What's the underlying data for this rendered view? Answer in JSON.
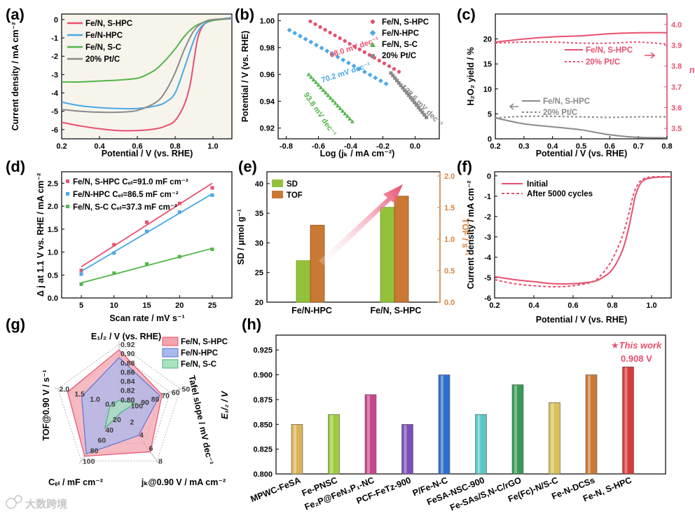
{
  "colors": {
    "red": "#e8506e",
    "blue": "#4aa8e8",
    "green": "#52b64a",
    "gray": "#8a8a8a",
    "orange": "#d9843f",
    "bar_green": "#93c23a",
    "bar_orange": "#c97934"
  },
  "panel_labels": [
    "(a)",
    "(b)",
    "(c)",
    "(d)",
    "(e)",
    "(f)",
    "(g)",
    "(h)"
  ],
  "watermark": "大数跨境",
  "chart_data": [
    {
      "panel": "(a)",
      "type": "line",
      "xlabel": "Potential / V (vs. RHE)",
      "ylabel": "Current density / mA cm⁻²",
      "xlim": [
        0.2,
        1.1
      ],
      "ylim": [
        -6.5,
        0.3
      ],
      "xticks": [
        "0.2",
        "0.4",
        "0.6",
        "0.8",
        "1.0"
      ],
      "yticks": [
        "0",
        "-1",
        "-2",
        "-3",
        "-4",
        "-5",
        "-6"
      ],
      "legend": [
        "Fe/N, S-HPC",
        "Fe/N-HPC",
        "Fe/N, S-C",
        "20% Pt/C"
      ],
      "series": [
        {
          "name": "Fe/N, S-HPC",
          "color_key": "red",
          "x": [
            0.2,
            0.3,
            0.4,
            0.5,
            0.6,
            0.7,
            0.75,
            0.8,
            0.85,
            0.88,
            0.9,
            0.92,
            0.95,
            1.0,
            1.1
          ],
          "y": [
            -5.6,
            -5.8,
            -5.95,
            -6.05,
            -6.05,
            -5.95,
            -5.8,
            -5.5,
            -4.6,
            -3.5,
            -2.2,
            -1.0,
            -0.3,
            -0.05,
            0.1
          ]
        },
        {
          "name": "Fe/N-HPC",
          "color_key": "blue",
          "x": [
            0.2,
            0.3,
            0.4,
            0.5,
            0.6,
            0.7,
            0.75,
            0.8,
            0.85,
            0.9,
            0.93,
            0.96,
            1.0,
            1.1
          ],
          "y": [
            -4.5,
            -4.7,
            -4.8,
            -4.85,
            -4.85,
            -4.7,
            -4.5,
            -4.0,
            -2.6,
            -1.1,
            -0.5,
            -0.2,
            -0.05,
            0.1
          ]
        },
        {
          "name": "Fe/N, S-C",
          "color_key": "green",
          "x": [
            0.2,
            0.3,
            0.4,
            0.5,
            0.6,
            0.65,
            0.7,
            0.75,
            0.8,
            0.85,
            0.9,
            0.95,
            1.0,
            1.1
          ],
          "y": [
            -3.4,
            -3.4,
            -3.35,
            -3.3,
            -3.2,
            -3.0,
            -2.7,
            -2.2,
            -1.6,
            -0.9,
            -0.4,
            -0.15,
            -0.05,
            0.05
          ]
        },
        {
          "name": "20% Pt/C",
          "color_key": "gray",
          "x": [
            0.2,
            0.3,
            0.4,
            0.5,
            0.6,
            0.7,
            0.75,
            0.8,
            0.85,
            0.9,
            0.95,
            1.0,
            1.1
          ],
          "y": [
            -4.9,
            -5.0,
            -5.05,
            -5.05,
            -4.95,
            -4.5,
            -3.9,
            -2.9,
            -1.6,
            -0.6,
            -0.15,
            0.0,
            0.05
          ]
        }
      ]
    },
    {
      "panel": "(b)",
      "type": "scatter",
      "xlabel": "Log (jₖ / mA cm⁻²)",
      "ylabel": "Potential / V (vs. RHE)",
      "xlim": [
        -0.85,
        0.15
      ],
      "ylim": [
        0.912,
        1.005
      ],
      "xticks": [
        "-0.8",
        "-0.6",
        "-0.4",
        "-0.2",
        "0.0"
      ],
      "yticks": [
        "1.00",
        "0.98",
        "0.96",
        "0.94",
        "0.92"
      ],
      "legend": [
        "Fe/N, S-HPC",
        "Fe/N-HPC",
        "Fe/N, S-C",
        "20% Pt/C"
      ],
      "annotations": [
        "68.0 mV dec⁻¹",
        "70.2 mV dec⁻¹",
        "93.8 mV dec⁻¹",
        "128.6 mV dec⁻¹"
      ],
      "series": [
        {
          "name": "Fe/N, S-HPC",
          "color_key": "red",
          "x0": -0.65,
          "x1": -0.1,
          "y0": 0.9995,
          "y1": 0.962
        },
        {
          "name": "Fe/N-HPC",
          "color_key": "blue",
          "x0": -0.78,
          "x1": -0.18,
          "y0": 0.993,
          "y1": 0.953
        },
        {
          "name": "Fe/N, S-C",
          "color_key": "green",
          "x0": -0.66,
          "x1": -0.39,
          "y0": 0.96,
          "y1": 0.925
        },
        {
          "name": "20% Pt/C",
          "color_key": "gray",
          "x0": -0.15,
          "x1": 0.07,
          "y0": 0.961,
          "y1": 0.928
        }
      ]
    },
    {
      "panel": "(c)",
      "type": "line",
      "xlabel": "Potential / V (vs. RHE)",
      "ylabel": "H₂O₂ yield / %",
      "y2label": "n",
      "xlim": [
        0.2,
        0.8
      ],
      "ylim": [
        0,
        25
      ],
      "y2lim": [
        3.45,
        4.05
      ],
      "xticks": [
        "0.2",
        "0.3",
        "0.4",
        "0.5",
        "0.6",
        "0.7",
        "0.8"
      ],
      "yticks": [
        "0",
        "5",
        "10",
        "15",
        "20"
      ],
      "y2ticks": [
        "3.5",
        "3.6",
        "3.7",
        "3.8",
        "3.9",
        "4.0"
      ],
      "legend": [
        "Fe/N, S-HPC",
        "20% Pt/C",
        "Fe/N, S-HPC",
        "20% Pt/C"
      ],
      "series": [
        {
          "name": "Fe/N, S-HPC n",
          "axis": "right",
          "style": "solid",
          "color_key": "red",
          "x": [
            0.2,
            0.3,
            0.4,
            0.5,
            0.6,
            0.7,
            0.8
          ],
          "y": [
            3.915,
            3.93,
            3.94,
            3.945,
            3.955,
            3.96,
            3.96
          ]
        },
        {
          "name": "20% Pt/C n",
          "axis": "right",
          "style": "dashed",
          "color_key": "red",
          "x": [
            0.2,
            0.3,
            0.4,
            0.5,
            0.6,
            0.7,
            0.8
          ],
          "y": [
            3.91,
            3.915,
            3.915,
            3.91,
            3.91,
            3.915,
            3.905
          ]
        },
        {
          "name": "Fe/N, S-HPC H2O2",
          "axis": "left",
          "style": "solid",
          "color_key": "gray",
          "x": [
            0.2,
            0.3,
            0.4,
            0.5,
            0.6,
            0.7,
            0.8
          ],
          "y": [
            4.2,
            3.0,
            2.4,
            1.8,
            0.8,
            0.3,
            0.2
          ]
        },
        {
          "name": "20% Pt/C H2O2",
          "axis": "left",
          "style": "dashed",
          "color_key": "gray",
          "x": [
            0.2,
            0.3,
            0.4,
            0.5,
            0.6,
            0.7,
            0.8
          ],
          "y": [
            4.2,
            4.5,
            4.5,
            4.4,
            4.3,
            4.4,
            4.4
          ]
        }
      ]
    },
    {
      "panel": "(d)",
      "type": "scatter",
      "xlabel": "Scan rate / mV s⁻¹",
      "ylabel": "Δ j at 1.1 V vs. RHE / mA cm⁻²",
      "xlim": [
        2,
        28
      ],
      "ylim": [
        0,
        2.75
      ],
      "xticks": [
        "5",
        "10",
        "15",
        "20",
        "25"
      ],
      "yticks": [
        "0.0",
        "0.5",
        "1.0",
        "1.5",
        "2.0",
        "2.5"
      ],
      "legend": [
        "Fe/N, S-HPC  Cₑₗ=91.0 mF cm⁻²",
        "Fe/N-HPC  Cₑₗ=86.5 mF cm⁻²",
        "Fe/N, S-C  Cₑₗ=37.3 mF cm⁻²"
      ],
      "x": [
        5,
        10,
        15,
        20,
        25
      ],
      "series": [
        {
          "name": "Fe/N, S-HPC",
          "color_key": "red",
          "values": [
            0.6,
            1.16,
            1.65,
            2.06,
            2.4
          ],
          "fit": [
            0.68,
            2.5
          ]
        },
        {
          "name": "Fe/N-HPC",
          "color_key": "blue",
          "values": [
            0.52,
            0.98,
            1.45,
            1.87,
            2.24
          ],
          "fit": [
            0.58,
            2.27
          ]
        },
        {
          "name": "Fe/N, S-C",
          "color_key": "green",
          "values": [
            0.3,
            0.54,
            0.74,
            0.9,
            1.06
          ],
          "fit": [
            0.33,
            1.08
          ]
        }
      ]
    },
    {
      "panel": "(e)",
      "type": "bar",
      "categories": [
        "Fe/N-HPC",
        "Fe/N, S-HPC"
      ],
      "ylabel": "SD / μmol g⁻¹",
      "y2label": "TOF / s⁻¹",
      "ylim": [
        20,
        42
      ],
      "y2lim": [
        0.0,
        2.0
      ],
      "yticks": [
        "20",
        "25",
        "30",
        "35",
        "40"
      ],
      "y2ticks": [
        "0.0",
        "0.5",
        "1.0",
        "1.5",
        "2.0"
      ],
      "legend": [
        "SD",
        "TOF"
      ],
      "series": [
        {
          "name": "SD",
          "color_key": "bar_green",
          "values": [
            27.0,
            36.0
          ]
        },
        {
          "name": "TOF",
          "color_key": "bar_orange",
          "values": [
            1.22,
            1.68
          ]
        }
      ]
    },
    {
      "panel": "(f)",
      "type": "line",
      "xlabel": "Potential / V (vs. RHE)",
      "ylabel": "Current density / mA cm⁻²",
      "xlim": [
        0.2,
        1.1
      ],
      "ylim": [
        -6.0,
        0.2
      ],
      "xticks": [
        "0.2",
        "0.4",
        "0.6",
        "0.8",
        "1.0"
      ],
      "yticks": [
        "0",
        "-1",
        "-2",
        "-3",
        "-4",
        "-5",
        "-6"
      ],
      "legend": [
        "Initial",
        "After 5000 cycles"
      ],
      "series": [
        {
          "name": "Initial",
          "style": "solid",
          "color_key": "red",
          "x": [
            0.2,
            0.3,
            0.4,
            0.5,
            0.6,
            0.7,
            0.75,
            0.8,
            0.85,
            0.88,
            0.9,
            0.92,
            0.95,
            1.0,
            1.1
          ],
          "y": [
            -4.95,
            -5.1,
            -5.2,
            -5.3,
            -5.3,
            -5.2,
            -5.0,
            -4.6,
            -3.7,
            -2.7,
            -1.8,
            -0.9,
            -0.3,
            -0.1,
            -0.05
          ]
        },
        {
          "name": "After 5000 cycles",
          "style": "dashed",
          "color_key": "red",
          "x": [
            0.2,
            0.3,
            0.4,
            0.5,
            0.6,
            0.7,
            0.75,
            0.8,
            0.85,
            0.88,
            0.9,
            0.92,
            0.95,
            1.0,
            1.1
          ],
          "y": [
            -5.1,
            -5.3,
            -5.4,
            -5.45,
            -5.4,
            -5.2,
            -4.8,
            -4.1,
            -3.0,
            -2.0,
            -1.2,
            -0.6,
            -0.2,
            -0.05,
            -0.05
          ]
        }
      ]
    },
    {
      "panel": "(g)",
      "type": "radar",
      "axes": [
        {
          "label": "E₁/₂ / V (vs. RHE)",
          "ticks": [
            "0.80",
            "0.82",
            "0.84",
            "0.86",
            "0.88",
            "0.90",
            "0.92"
          ],
          "min": 0.78,
          "max": 0.92
        },
        {
          "label": "Tafel slope / mV dec⁻¹",
          "ticks": [
            "100",
            "90",
            "80",
            "70",
            "60",
            "50"
          ],
          "min": 110,
          "max": 50
        },
        {
          "label": "jₖ@0.90 V / mA cm⁻²",
          "ticks": [
            "2",
            "4",
            "6",
            "8"
          ],
          "min": 0,
          "max": 8
        },
        {
          "label": "Cₑₗ / mF cm⁻²",
          "ticks": [
            "20",
            "40",
            "60",
            "80",
            "100"
          ],
          "min": 0,
          "max": 100
        },
        {
          "label": "TOF@0.90 V / s⁻¹",
          "ticks": [
            "0.5",
            "1.0",
            "1.5",
            "2.0"
          ],
          "min": 0,
          "max": 2.0
        }
      ],
      "legend": [
        "Fe/N, S-HPC",
        "Fe/N-HPC",
        "Fe/N, S-C"
      ],
      "series": [
        {
          "name": "Fe/N, S-HPC",
          "color_key": "red",
          "values": [
            0.908,
            68.0,
            6.6,
            91.0,
            1.68
          ]
        },
        {
          "name": "Fe/N-HPC",
          "color_key": "blue",
          "values": [
            0.891,
            70.2,
            4.1,
            86.5,
            1.22
          ]
        },
        {
          "name": "Fe/N, S-C",
          "color_key": "green",
          "values": [
            0.798,
            93.8,
            0.5,
            37.3,
            0.3
          ]
        }
      ]
    },
    {
      "panel": "(h)",
      "type": "bar",
      "ylabel": "E₁/₂ / V",
      "ylim": [
        0.8,
        0.94
      ],
      "yticks": [
        "0.800",
        "0.825",
        "0.850",
        "0.875",
        "0.900",
        "0.925"
      ],
      "annotation": "★This work",
      "value_label": "0.908 V",
      "categories": [
        "MPWC-FeSA",
        "Fe-PNSC",
        "Fe₂P@FeN₃P₁-NC",
        "PCF-FeTz-900",
        "P/Fe-N-C",
        "FeSA-NSC-900",
        "Fe-SAs/S,N-C/rGO",
        "Fe(Fc)-N/S-C",
        "Fe-N-DCSs",
        "Fe-N, S-HPC"
      ],
      "values": [
        0.85,
        0.86,
        0.88,
        0.85,
        0.9,
        0.86,
        0.89,
        0.872,
        0.9,
        0.908
      ],
      "bar_colors": [
        "#d9b45a",
        "#9ccc3c",
        "#c6458c",
        "#7b4fb8",
        "#2e6fcc",
        "#5cc6c8",
        "#3a9a56",
        "#d8c25a",
        "#c97934",
        "#d93a3a"
      ]
    }
  ]
}
